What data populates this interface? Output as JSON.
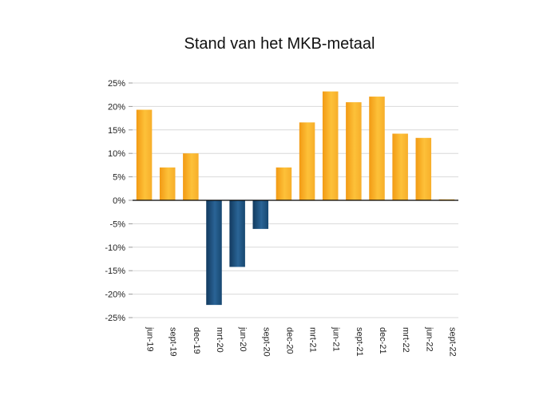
{
  "chart_data": {
    "type": "bar",
    "title": "Stand van het MKB-metaal",
    "xlabel": "",
    "ylabel": "",
    "categories": [
      "jun-19",
      "sept-19",
      "dec-19",
      "mrt-20",
      "jun-20",
      "sept-20",
      "dec-20",
      "mrt-21",
      "jun-21",
      "sept-21",
      "dec-21",
      "mrt-22",
      "jun-22",
      "sept-22"
    ],
    "values": [
      19.3,
      7,
      10,
      -22.3,
      -14.2,
      -6.1,
      7,
      16.6,
      23.2,
      20.9,
      22.1,
      14.2,
      13.3,
      0.2
    ],
    "ylim": [
      -25,
      25
    ],
    "yticks": [
      25,
      20,
      15,
      10,
      5,
      0,
      -5,
      -10,
      -15,
      -20,
      -25
    ],
    "ytick_labels": [
      "25%",
      "20%",
      "15%",
      "10%",
      "5%",
      "0%",
      "-5%",
      "-10%",
      "-15%",
      "-20%",
      "-25%"
    ],
    "grid": true,
    "legend": "none",
    "colors": {
      "positive": "#F7A823",
      "negative": "#1A4E7D"
    }
  }
}
